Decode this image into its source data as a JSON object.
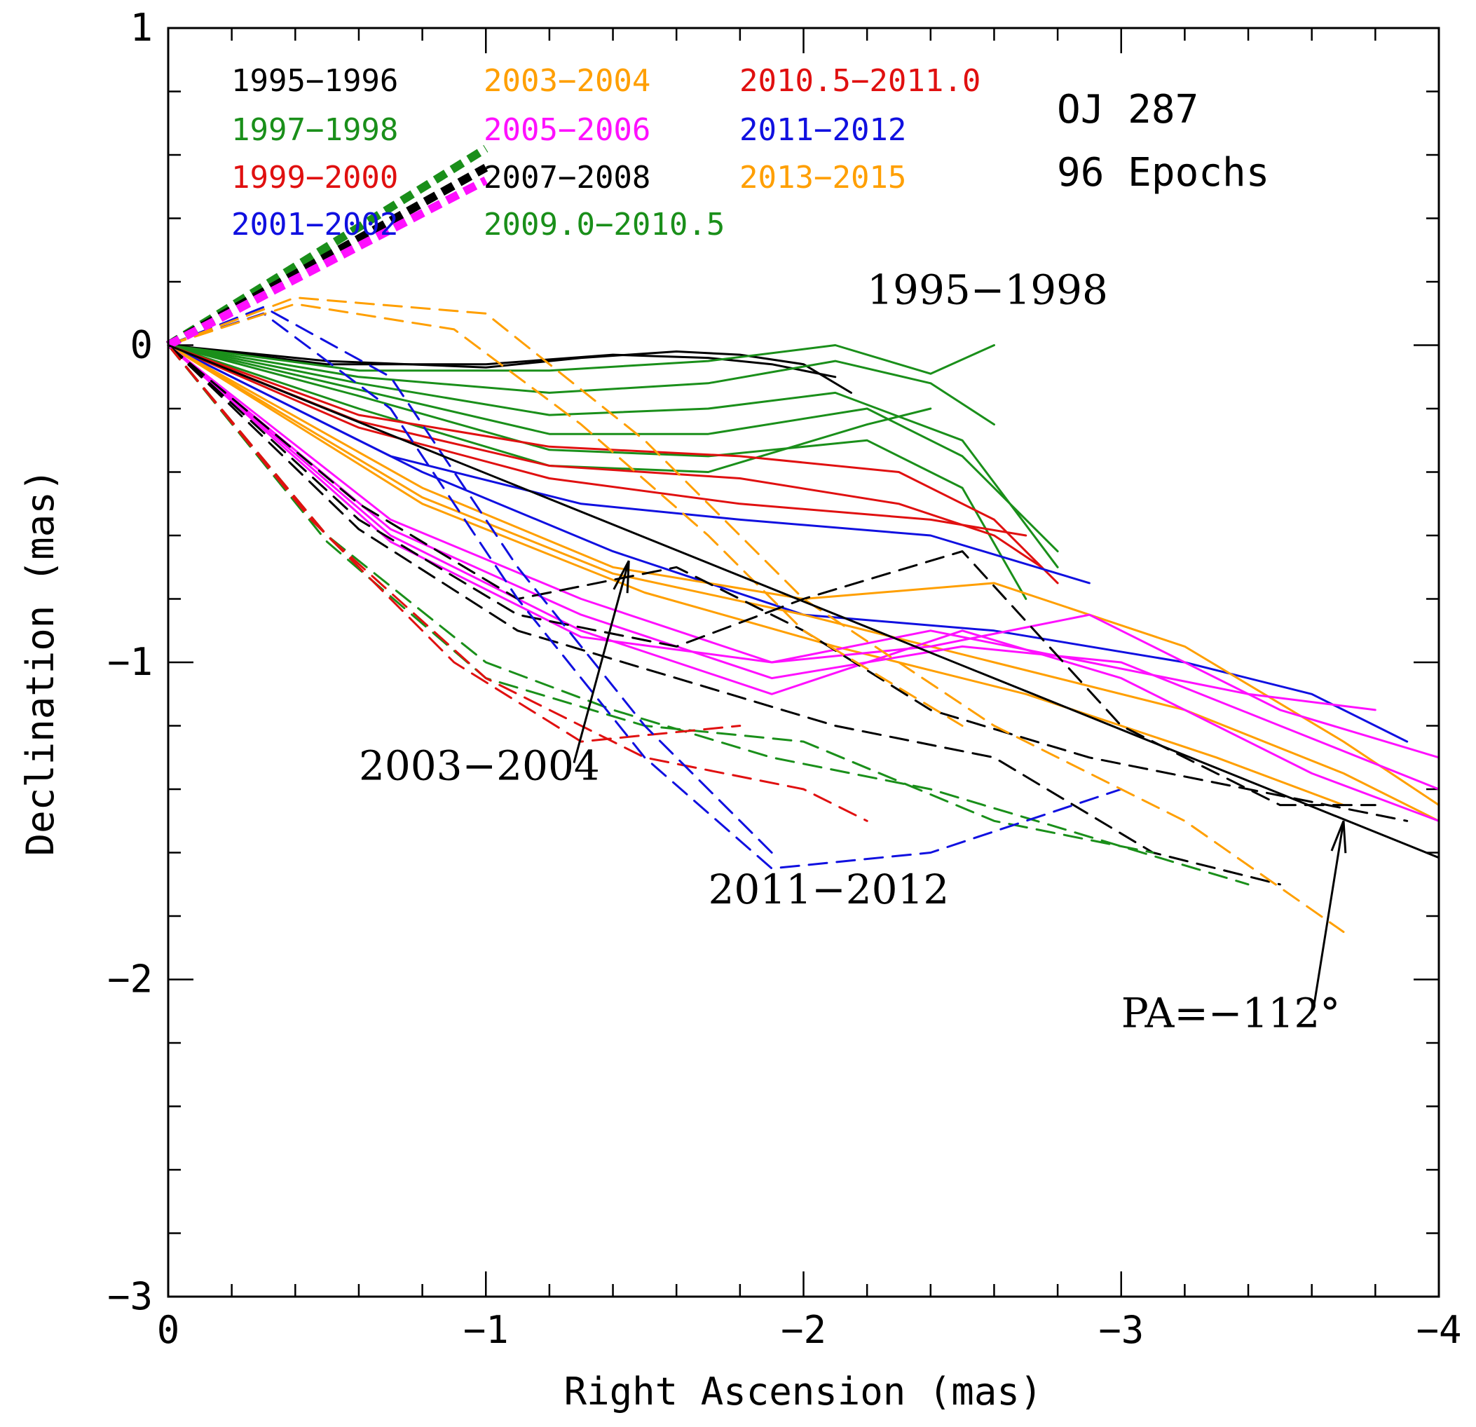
{
  "chart_data": {
    "type": "line",
    "title": "OJ 287",
    "subtitle": "96 Epochs",
    "xlabel": "Right Ascension (mas)",
    "ylabel": "Declination (mas)",
    "xlim": [
      0,
      -4
    ],
    "ylim": [
      -3,
      1
    ],
    "x_ticks": [
      {
        "value": 0,
        "label": "0"
      },
      {
        "value": -1,
        "label": "−1"
      },
      {
        "value": -2,
        "label": "−2"
      },
      {
        "value": -3,
        "label": "−3"
      },
      {
        "value": -4,
        "label": "−4"
      }
    ],
    "y_ticks": [
      {
        "value": 1,
        "label": "1"
      },
      {
        "value": 0,
        "label": "0"
      },
      {
        "value": -1,
        "label": "−1"
      },
      {
        "value": -2,
        "label": "−2"
      },
      {
        "value": -3,
        "label": "−3"
      }
    ],
    "grid": false,
    "legend_placement": "top-left",
    "legend": [
      {
        "label": "1995−1996",
        "color": "#000000"
      },
      {
        "label": "1997−1998",
        "color": "#1a8f1a"
      },
      {
        "label": "1999−2000",
        "color": "#e01010"
      },
      {
        "label": "2001−2002",
        "color": "#1010e0"
      },
      {
        "label": "2003−2004",
        "color": "#ff9f00"
      },
      {
        "label": "2005−2006",
        "color": "#ff10ff"
      },
      {
        "label": "2007−2008",
        "color": "#000000"
      },
      {
        "label": "2009.0−2010.5",
        "color": "#1a8f1a"
      },
      {
        "label": "2010.5−2011.0",
        "color": "#e01010"
      },
      {
        "label": "2011−2012",
        "color": "#1010e0"
      },
      {
        "label": "2013−2015",
        "color": "#ff9f00"
      }
    ],
    "annotations": [
      {
        "text": "1995−1998",
        "x": -2.2,
        "y": 0.13
      },
      {
        "text": "2003−2004",
        "x": -0.6,
        "y": -1.37,
        "arrow_to": [
          -1.45,
          -0.68
        ]
      },
      {
        "text": "2011−2012",
        "x": -1.7,
        "y": -1.76
      },
      {
        "text": "PA=−112°",
        "x": -3.0,
        "y": -2.15,
        "arrow_to": [
          -3.7,
          -1.5
        ]
      }
    ],
    "reference_line": {
      "label": "PA=−112°",
      "x": [
        0,
        -4
      ],
      "y": [
        0,
        -1.616
      ]
    },
    "series": [
      {
        "name": "1995−1996",
        "color": "#000000",
        "dash": false,
        "x": [
          0,
          -0.5,
          -1.0,
          -1.3,
          -1.6,
          -1.8,
          -2.0,
          -2.15
        ],
        "y": [
          0,
          -0.05,
          -0.07,
          -0.04,
          -0.02,
          -0.03,
          -0.06,
          -0.15
        ]
      },
      {
        "name": "1995−1996",
        "color": "#000000",
        "dash": false,
        "x": [
          0,
          -0.5,
          -1.0,
          -1.4,
          -1.7,
          -1.9,
          -2.1
        ],
        "y": [
          0,
          -0.06,
          -0.06,
          -0.03,
          -0.04,
          -0.06,
          -0.1
        ]
      },
      {
        "name": "1997−1998",
        "color": "#1a8f1a",
        "dash": false,
        "x": [
          0,
          -0.6,
          -1.2,
          -1.7,
          -2.1,
          -2.4,
          -2.6
        ],
        "y": [
          0,
          -0.08,
          -0.08,
          -0.05,
          0.0,
          -0.09,
          0.0
        ]
      },
      {
        "name": "1997−1998",
        "color": "#1a8f1a",
        "dash": false,
        "x": [
          0,
          -0.6,
          -1.2,
          -1.7,
          -2.1,
          -2.4,
          -2.6
        ],
        "y": [
          0,
          -0.1,
          -0.15,
          -0.12,
          -0.05,
          -0.12,
          -0.25
        ]
      },
      {
        "name": "1997−1998",
        "color": "#1a8f1a",
        "dash": false,
        "x": [
          0,
          -0.6,
          -1.2,
          -1.7,
          -2.1,
          -2.5,
          -2.8
        ],
        "y": [
          0,
          -0.12,
          -0.22,
          -0.2,
          -0.15,
          -0.3,
          -0.7
        ]
      },
      {
        "name": "1997−1998",
        "color": "#1a8f1a",
        "dash": false,
        "x": [
          0,
          -0.6,
          -1.2,
          -1.7,
          -2.2,
          -2.5,
          -2.8
        ],
        "y": [
          0,
          -0.14,
          -0.28,
          -0.28,
          -0.2,
          -0.35,
          -0.65
        ]
      },
      {
        "name": "1997−1998",
        "color": "#1a8f1a",
        "dash": false,
        "x": [
          0,
          -0.6,
          -1.2,
          -1.7,
          -2.2,
          -2.5,
          -2.7
        ],
        "y": [
          0,
          -0.16,
          -0.33,
          -0.35,
          -0.3,
          -0.45,
          -0.8
        ]
      },
      {
        "name": "1997−1998",
        "color": "#1a8f1a",
        "dash": false,
        "x": [
          0,
          -0.6,
          -1.2,
          -1.7,
          -2.2,
          -2.4
        ],
        "y": [
          0,
          -0.2,
          -0.38,
          -0.4,
          -0.25,
          -0.2
        ]
      },
      {
        "name": "1999−2000",
        "color": "#e01010",
        "dash": false,
        "x": [
          0,
          -0.6,
          -1.2,
          -1.8,
          -2.3,
          -2.6,
          -2.8
        ],
        "y": [
          0,
          -0.22,
          -0.32,
          -0.35,
          -0.4,
          -0.55,
          -0.75
        ]
      },
      {
        "name": "1999−2000",
        "color": "#e01010",
        "dash": false,
        "x": [
          0,
          -0.6,
          -1.2,
          -1.8,
          -2.3,
          -2.6,
          -2.75
        ],
        "y": [
          0,
          -0.24,
          -0.38,
          -0.42,
          -0.5,
          -0.6,
          -0.7
        ]
      },
      {
        "name": "1999−2000",
        "color": "#e01010",
        "dash": false,
        "x": [
          0,
          -0.6,
          -1.2,
          -1.8,
          -2.4,
          -2.7
        ],
        "y": [
          0,
          -0.26,
          -0.42,
          -0.5,
          -0.55,
          -0.6
        ]
      },
      {
        "name": "2001−2002",
        "color": "#1010e0",
        "dash": false,
        "x": [
          0,
          -0.7,
          -1.3,
          -1.8,
          -2.4,
          -2.9
        ],
        "y": [
          0,
          -0.35,
          -0.5,
          -0.55,
          -0.6,
          -0.75
        ]
      },
      {
        "name": "2001−2002",
        "color": "#1010e0",
        "dash": false,
        "x": [
          0,
          -0.8,
          -1.4,
          -2.0,
          -2.6,
          -3.2,
          -3.6,
          -3.9
        ],
        "y": [
          0,
          -0.4,
          -0.65,
          -0.85,
          -0.9,
          -1.0,
          -1.1,
          -1.25
        ]
      },
      {
        "name": "2003−2004",
        "color": "#ff9f00",
        "dash": false,
        "x": [
          0,
          -0.8,
          -1.4,
          -2.0,
          -2.6,
          -3.2,
          -3.7,
          -4.0
        ],
        "y": [
          0,
          -0.45,
          -0.7,
          -0.8,
          -0.75,
          -0.95,
          -1.25,
          -1.45
        ]
      },
      {
        "name": "2003−2004",
        "color": "#ff9f00",
        "dash": false,
        "x": [
          0,
          -0.8,
          -1.4,
          -2.0,
          -2.6,
          -3.2,
          -3.7,
          -4.0
        ],
        "y": [
          0,
          -0.48,
          -0.72,
          -0.85,
          -1.0,
          -1.15,
          -1.35,
          -1.5
        ]
      },
      {
        "name": "2003−2004",
        "color": "#ff9f00",
        "dash": false,
        "x": [
          0,
          -0.8,
          -1.5,
          -2.1,
          -2.7,
          -3.3,
          -3.7
        ],
        "y": [
          0,
          -0.5,
          -0.78,
          -0.95,
          -1.1,
          -1.3,
          -1.45
        ]
      },
      {
        "name": "2005−2006",
        "color": "#ff10ff",
        "dash": false,
        "x": [
          0,
          -0.7,
          -1.3,
          -1.9,
          -2.4,
          -2.9,
          -3.5,
          -4.0
        ],
        "y": [
          0,
          -0.55,
          -0.8,
          -1.0,
          -0.95,
          -0.85,
          -1.15,
          -1.3
        ]
      },
      {
        "name": "2005−2006",
        "color": "#ff10ff",
        "dash": false,
        "x": [
          0,
          -0.7,
          -1.3,
          -1.9,
          -2.5,
          -3.0,
          -3.5,
          -4.0
        ],
        "y": [
          0,
          -0.58,
          -0.85,
          -1.05,
          -0.95,
          -1.0,
          -1.2,
          -1.4
        ]
      },
      {
        "name": "2005−2006",
        "color": "#ff10ff",
        "dash": false,
        "x": [
          0,
          -0.7,
          -1.3,
          -1.9,
          -2.5,
          -3.0,
          -3.6,
          -4.0
        ],
        "y": [
          0,
          -0.6,
          -0.9,
          -1.1,
          -0.9,
          -1.05,
          -1.35,
          -1.5
        ]
      },
      {
        "name": "2005−2006",
        "color": "#ff10ff",
        "dash": false,
        "x": [
          0,
          -0.7,
          -1.3,
          -1.9,
          -2.4,
          -2.9,
          -3.4,
          -3.8
        ],
        "y": [
          0,
          -0.62,
          -0.92,
          -1.0,
          -0.9,
          -1.0,
          -1.1,
          -1.15
        ]
      },
      {
        "name": "2007−2008",
        "color": "#000000",
        "dash": true,
        "x": [
          0,
          -0.6,
          -1.1,
          -1.6,
          -2.0,
          -2.4,
          -2.9,
          -3.4,
          -3.9
        ],
        "y": [
          0,
          -0.5,
          -0.8,
          -0.7,
          -0.9,
          -1.15,
          -1.3,
          -1.4,
          -1.5
        ]
      },
      {
        "name": "2007−2008",
        "color": "#000000",
        "dash": true,
        "x": [
          0,
          -0.6,
          -1.1,
          -1.6,
          -2.0,
          -2.5,
          -3.0,
          -3.5,
          -3.8
        ],
        "y": [
          0,
          -0.55,
          -0.85,
          -0.95,
          -0.8,
          -0.65,
          -1.2,
          -1.45,
          -1.45
        ]
      },
      {
        "name": "2007−2008",
        "color": "#000000",
        "dash": true,
        "x": [
          0,
          -0.6,
          -1.1,
          -1.6,
          -2.1,
          -2.6,
          -3.1,
          -3.5
        ],
        "y": [
          0,
          -0.58,
          -0.9,
          -1.05,
          -1.2,
          -1.3,
          -1.6,
          -1.7
        ]
      },
      {
        "name": "2009.0−2010.5",
        "color": "#1a8f1a",
        "dash": true,
        "x": [
          0,
          -0.5,
          -1.0,
          -1.4,
          -1.9,
          -2.4,
          -2.9,
          -3.4
        ],
        "y": [
          0,
          -0.6,
          -1.0,
          -1.15,
          -1.3,
          -1.4,
          -1.55,
          -1.7
        ]
      },
      {
        "name": "2009.0−2010.5",
        "color": "#1a8f1a",
        "dash": true,
        "x": [
          0,
          -0.5,
          -1.0,
          -1.5,
          -2.0,
          -2.6,
          -3.1
        ],
        "y": [
          0,
          -0.62,
          -1.05,
          -1.2,
          -1.25,
          -1.5,
          -1.6
        ]
      },
      {
        "name": "2010.5−2011.0",
        "color": "#e01010",
        "dash": true,
        "x": [
          0,
          -0.5,
          -1.0,
          -1.5,
          -2.0,
          -2.2
        ],
        "y": [
          0,
          -0.6,
          -1.05,
          -1.3,
          -1.4,
          -1.5
        ]
      },
      {
        "name": "2010.5−2011.0",
        "color": "#e01010",
        "dash": true,
        "x": [
          0,
          -0.45,
          -0.9,
          -1.3,
          -1.8
        ],
        "y": [
          0,
          -0.55,
          -1.0,
          -1.25,
          -1.2
        ]
      },
      {
        "name": "2011−2012",
        "color": "#1010e0",
        "dash": true,
        "x": [
          0,
          -0.3,
          -0.7,
          -1.1,
          -1.5,
          -1.9,
          -2.4,
          -3.0
        ],
        "y": [
          0,
          0.1,
          -0.2,
          -0.8,
          -1.3,
          -1.65,
          -1.6,
          -1.4
        ]
      },
      {
        "name": "2011−2012",
        "color": "#1010e0",
        "dash": true,
        "x": [
          0,
          -0.3,
          -0.7,
          -1.1,
          -1.5,
          -1.9
        ],
        "y": [
          0,
          0.12,
          -0.1,
          -0.7,
          -1.2,
          -1.6
        ]
      },
      {
        "name": "2013−2015",
        "color": "#ff9f00",
        "dash": true,
        "x": [
          0,
          -0.4,
          -1.0,
          -1.5,
          -2.0,
          -2.6,
          -3.2,
          -3.7
        ],
        "y": [
          0,
          0.15,
          0.1,
          -0.3,
          -0.8,
          -1.2,
          -1.5,
          -1.85
        ]
      },
      {
        "name": "2013−2015",
        "color": "#ff9f00",
        "dash": true,
        "x": [
          0,
          -0.4,
          -0.9,
          -1.3,
          -1.7,
          -2.0,
          -2.5
        ],
        "y": [
          0,
          0.13,
          0.05,
          -0.25,
          -0.6,
          -0.9,
          -1.2
        ]
      }
    ]
  }
}
